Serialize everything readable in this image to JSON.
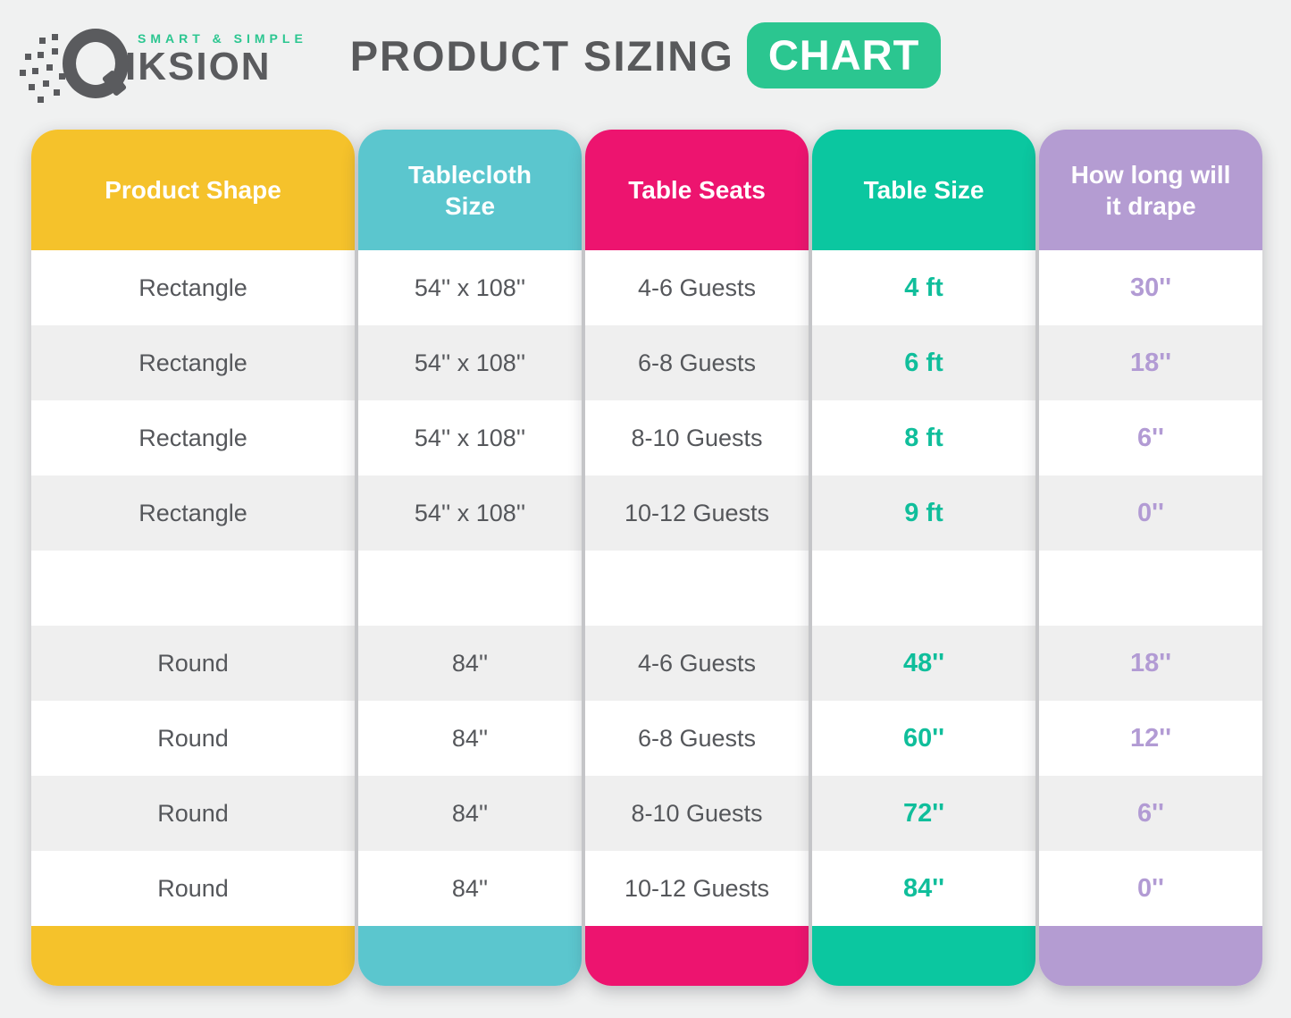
{
  "logo": {
    "tagline": "SMART & SIMPLE",
    "brand_rest": "IKSION",
    "mark": "q-with-speed-dots-icon",
    "gray": "#5a5b5e",
    "teal": "#2bc690"
  },
  "title": {
    "main": "PRODUCT SIZING",
    "badge": "CHART",
    "badge_bg": "#2bc690",
    "badge_text_color": "#ffffff",
    "text_color": "#58595b"
  },
  "table": {
    "columns": [
      {
        "key": "shape",
        "label": "Product Shape",
        "color": "#f5c22b"
      },
      {
        "key": "cloth",
        "label": "Tablecloth Size",
        "color": "#5bc6ce"
      },
      {
        "key": "seats",
        "label": "Table Seats",
        "color": "#ed146f"
      },
      {
        "key": "size",
        "label": "Table Size",
        "color": "#0bc7a0"
      },
      {
        "key": "drape",
        "label": "How long will it drape",
        "color": "#b49cd2"
      }
    ],
    "value_styles": {
      "size": "#10be9b",
      "drape": "#b29bd4"
    },
    "rows": [
      {
        "shape": "Rectangle",
        "cloth": "54'' x 108''",
        "seats": "4-6 Guests",
        "size": "4 ft",
        "drape": "30''"
      },
      {
        "shape": "Rectangle",
        "cloth": "54'' x 108''",
        "seats": "6-8 Guests",
        "size": "6 ft",
        "drape": "18''"
      },
      {
        "shape": "Rectangle",
        "cloth": "54'' x 108''",
        "seats": "8-10 Guests",
        "size": "8 ft",
        "drape": "6''"
      },
      {
        "shape": "Rectangle",
        "cloth": "54'' x 108''",
        "seats": "10-12 Guests",
        "size": "9 ft",
        "drape": "0''"
      },
      {
        "shape": "",
        "cloth": "",
        "seats": "",
        "size": "",
        "drape": ""
      },
      {
        "shape": "Round",
        "cloth": "84''",
        "seats": "4-6 Guests",
        "size": "48''",
        "drape": "18''"
      },
      {
        "shape": "Round",
        "cloth": "84''",
        "seats": "6-8 Guests",
        "size": "60''",
        "drape": "12''"
      },
      {
        "shape": "Round",
        "cloth": "84''",
        "seats": "8-10 Guests",
        "size": "72''",
        "drape": "6''"
      },
      {
        "shape": "Round",
        "cloth": "84''",
        "seats": "10-12 Guests",
        "size": "84''",
        "drape": "0''"
      }
    ],
    "row_alt_bg": "#efefef",
    "text_dark": "#55575b"
  },
  "page": {
    "background": "#f0f1f1"
  }
}
